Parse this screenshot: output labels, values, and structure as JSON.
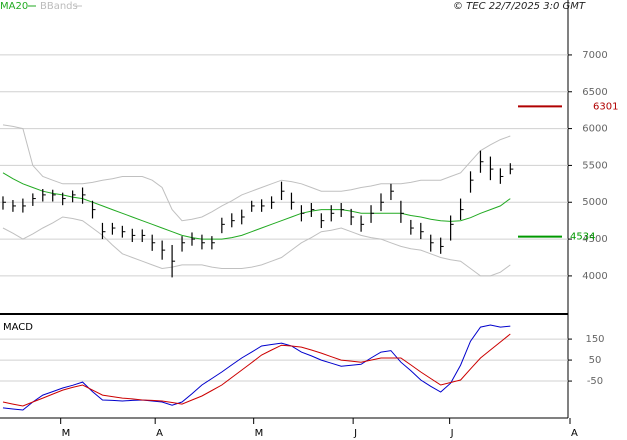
{
  "chart_data": [
    {
      "type": "hlc",
      "title": "© TEC 22/7/2025 3:0 GMT",
      "xlim": [
        -0.3,
        57
      ],
      "ylim": [
        3510,
        7610
      ],
      "yticks": [
        4000,
        4500,
        5000,
        5500,
        6000,
        6500,
        7000
      ],
      "grid": true,
      "color": "#000000",
      "high": [
        5080,
        5030,
        5050,
        5120,
        5180,
        5170,
        5130,
        5160,
        5200,
        5020,
        4720,
        4720,
        4680,
        4640,
        4630,
        4560,
        4480,
        4420,
        4540,
        4590,
        4560,
        4540,
        4790,
        4850,
        4900,
        5020,
        5040,
        5080,
        5280,
        5130,
        4960,
        4990,
        4850,
        4960,
        4990,
        4910,
        4820,
        4960,
        5120,
        5250,
        5020,
        4760,
        4720,
        4560,
        4520,
        4820,
        5050,
        5420,
        5700,
        5620,
        5460,
        5530
      ],
      "low": [
        4900,
        4870,
        4860,
        4950,
        5010,
        5010,
        4960,
        5000,
        4980,
        4780,
        4500,
        4560,
        4520,
        4460,
        4460,
        4340,
        4220,
        3980,
        4330,
        4410,
        4360,
        4360,
        4580,
        4660,
        4700,
        4870,
        4870,
        4910,
        5030,
        4900,
        4740,
        4800,
        4650,
        4740,
        4800,
        4690,
        4600,
        4720,
        4880,
        5030,
        4720,
        4560,
        4500,
        4330,
        4300,
        4480,
        4760,
        5130,
        5400,
        5300,
        5250,
        5380
      ],
      "close": [
        5000,
        4950,
        4950,
        5050,
        5100,
        5100,
        5050,
        5100,
        5100,
        4900,
        4600,
        4650,
        4600,
        4550,
        4550,
        4450,
        4350,
        4200,
        4450,
        4500,
        4450,
        4450,
        4700,
        4750,
        4800,
        4950,
        4950,
        5000,
        5150,
        5000,
        4850,
        4900,
        4750,
        4850,
        4900,
        4800,
        4700,
        4850,
        5000,
        5150,
        4850,
        4650,
        4600,
        4450,
        4400,
        4700,
        4900,
        5300,
        5550,
        5450,
        5350,
        5450
      ],
      "series": [
        {
          "name": "MA20",
          "color": "#22aa22",
          "values": [
            5400,
            5320,
            5250,
            5200,
            5150,
            5120,
            5100,
            5070,
            5050,
            5000,
            4950,
            4900,
            4850,
            4800,
            4750,
            4700,
            4650,
            4600,
            4550,
            4520,
            4500,
            4500,
            4500,
            4520,
            4550,
            4600,
            4650,
            4700,
            4750,
            4800,
            4850,
            4880,
            4900,
            4900,
            4900,
            4880,
            4850,
            4850,
            4850,
            4850,
            4850,
            4820,
            4800,
            4770,
            4750,
            4740,
            4750,
            4790,
            4850,
            4900,
            4950,
            5050
          ]
        },
        {
          "name": "BBands",
          "color": "#c0c0c0",
          "upper": [
            6050,
            6030,
            6000,
            5500,
            5350,
            5300,
            5250,
            5250,
            5250,
            5270,
            5300,
            5320,
            5350,
            5350,
            5350,
            5300,
            5200,
            4900,
            4750,
            4770,
            4800,
            4870,
            4950,
            5020,
            5100,
            5150,
            5200,
            5250,
            5300,
            5280,
            5250,
            5200,
            5150,
            5150,
            5150,
            5170,
            5200,
            5220,
            5250,
            5250,
            5250,
            5270,
            5300,
            5300,
            5300,
            5350,
            5400,
            5550,
            5700,
            5780,
            5850,
            5900
          ],
          "lower": [
            4650,
            4580,
            4500,
            4570,
            4650,
            4720,
            4800,
            4780,
            4750,
            4650,
            4550,
            4420,
            4300,
            4250,
            4200,
            4150,
            4100,
            4120,
            4150,
            4150,
            4150,
            4120,
            4100,
            4100,
            4100,
            4120,
            4150,
            4200,
            4250,
            4350,
            4450,
            4520,
            4600,
            4620,
            4650,
            4600,
            4550,
            4520,
            4500,
            4450,
            4400,
            4370,
            4350,
            4300,
            4250,
            4220,
            4200,
            4100,
            4000,
            4000,
            4050,
            4150
          ]
        }
      ],
      "markers": [
        {
          "value": 6301,
          "color": "#b00000"
        },
        {
          "value": 4534,
          "color": "#009900"
        }
      ]
    },
    {
      "type": "line",
      "title": "MACD",
      "xlim": [
        -0.3,
        57
      ],
      "ylim": [
        -226,
        260
      ],
      "yticks": [
        -50,
        50,
        150
      ],
      "grid": true,
      "xticks": [
        {
          "value": 5.8,
          "label": "M"
        },
        {
          "value": 15.3,
          "label": "A"
        },
        {
          "value": 25.2,
          "label": "M"
        },
        {
          "value": 35.2,
          "label": "J"
        },
        {
          "value": 44.9,
          "label": "J"
        },
        {
          "value": 57,
          "label": "A"
        }
      ],
      "series": [
        {
          "color": "#0000cc",
          "values": [
            -178,
            -183,
            -188,
            -150,
            -117,
            -100,
            -83,
            -70,
            -55,
            -100,
            -140,
            -142,
            -145,
            -142,
            -140,
            -145,
            -150,
            -165,
            -150,
            -110,
            -69,
            -38,
            -7,
            27,
            60,
            88,
            117,
            124,
            131,
            117,
            88,
            70,
            50,
            35,
            21,
            25,
            30,
            60,
            88,
            95,
            40,
            0,
            -45,
            -75,
            -102,
            -60,
            26,
            140,
            207,
            217,
            207,
            212
          ]
        },
        {
          "color": "#cc0000",
          "values": [
            -150,
            -160,
            -169,
            -150,
            -131,
            -112,
            -93,
            -80,
            -69,
            -93,
            -117,
            -124,
            -131,
            -135,
            -140,
            -142,
            -145,
            -152,
            -160,
            -140,
            -121,
            -95,
            -69,
            -33,
            2,
            38,
            74,
            98,
            121,
            117,
            112,
            98,
            83,
            66,
            50,
            45,
            40,
            50,
            60,
            60,
            60,
            27,
            -7,
            -38,
            -69,
            -57,
            -45,
            8,
            60,
            98,
            136,
            174
          ]
        }
      ]
    }
  ]
}
